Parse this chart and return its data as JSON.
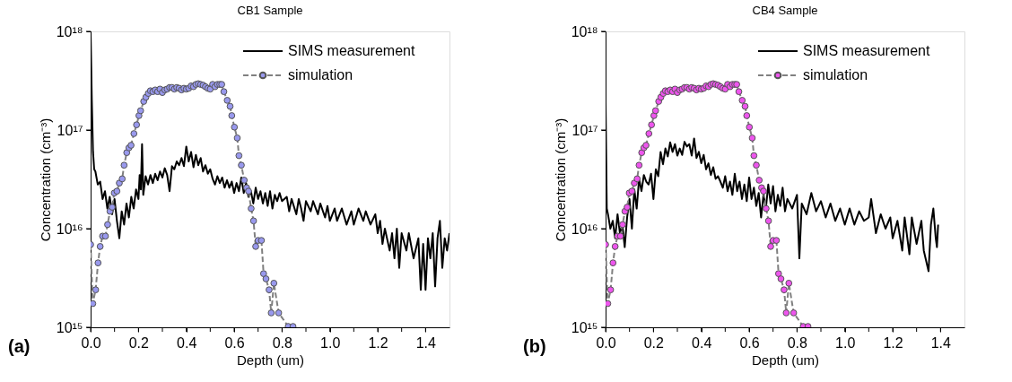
{
  "chart_data": [
    {
      "type": "line",
      "title": "CB1 Sample",
      "xlabel": "Depth (um)",
      "ylabel": "Concentration (cm⁻³)",
      "annotations": [
        "(a)"
      ],
      "log": "y",
      "grid": false,
      "legend": "top right",
      "xlim": [
        0,
        1.5
      ],
      "xticks": [
        {
          "value": 0,
          "label": "0.0"
        },
        {
          "value": 0.1,
          "label": null
        },
        {
          "value": 0.2,
          "label": "0.2"
        },
        {
          "value": 0.3,
          "label": null
        },
        {
          "value": 0.4,
          "label": "0.4"
        },
        {
          "value": 0.5,
          "label": null
        },
        {
          "value": 0.6,
          "label": "0.6"
        },
        {
          "value": 0.7,
          "label": null
        },
        {
          "value": 0.8,
          "label": "0.8"
        },
        {
          "value": 0.9,
          "label": null
        },
        {
          "value": 1.0,
          "label": "1.0"
        },
        {
          "value": 1.1,
          "label": null
        },
        {
          "value": 1.2,
          "label": "1.2"
        },
        {
          "value": 1.3,
          "label": null
        },
        {
          "value": 1.4,
          "label": "1.4"
        }
      ],
      "ylim": [
        1000000000000000.0,
        1e+18
      ],
      "yticks": [
        {
          "value": 1000000000000000.0,
          "label": "10¹⁵"
        },
        {
          "value": 1e+16,
          "label": "10¹⁶"
        },
        {
          "value": 1e+17,
          "label": "10¹⁷"
        },
        {
          "value": 1e+18,
          "label": "10¹⁸"
        }
      ],
      "series": [
        {
          "name": "SIMS measurement",
          "color": "#000000",
          "type": "line",
          "line_style": "solid",
          "marker": "none",
          "x": [
            0,
            0.005,
            0.01,
            0.015,
            0.02,
            0.03,
            0.04,
            0.05,
            0.06,
            0.07,
            0.08,
            0.09,
            0.1,
            0.11,
            0.12,
            0.13,
            0.14,
            0.15,
            0.16,
            0.17,
            0.18,
            0.19,
            0.2,
            0.205,
            0.21,
            0.215,
            0.22,
            0.23,
            0.24,
            0.25,
            0.26,
            0.27,
            0.28,
            0.29,
            0.3,
            0.31,
            0.32,
            0.33,
            0.34,
            0.35,
            0.36,
            0.37,
            0.38,
            0.39,
            0.4,
            0.41,
            0.42,
            0.43,
            0.44,
            0.45,
            0.46,
            0.47,
            0.48,
            0.49,
            0.5,
            0.51,
            0.52,
            0.53,
            0.54,
            0.55,
            0.56,
            0.57,
            0.58,
            0.59,
            0.6,
            0.61,
            0.62,
            0.63,
            0.64,
            0.65,
            0.66,
            0.67,
            0.68,
            0.69,
            0.7,
            0.71,
            0.72,
            0.73,
            0.74,
            0.75,
            0.76,
            0.77,
            0.78,
            0.79,
            0.8,
            0.82,
            0.83,
            0.84,
            0.86,
            0.87,
            0.88,
            0.89,
            0.9,
            0.92,
            0.93,
            0.95,
            0.96,
            0.98,
            0.99,
            1.0,
            1.02,
            1.03,
            1.05,
            1.07,
            1.09,
            1.1,
            1.12,
            1.14,
            1.15,
            1.17,
            1.19,
            1.2,
            1.21,
            1.22,
            1.23,
            1.25,
            1.26,
            1.27,
            1.28,
            1.29,
            1.3,
            1.32,
            1.33,
            1.35,
            1.37,
            1.38,
            1.39,
            1.4,
            1.41,
            1.42,
            1.43,
            1.44,
            1.45,
            1.46,
            1.47,
            1.48,
            1.49,
            1.5
          ],
          "values": [
            1e+18,
            2e+17,
            6e+16,
            4e+16,
            3.8e+16,
            2.8e+16,
            3e+16,
            2e+16,
            2.4e+16,
            1.6e+16,
            2.1e+16,
            1.4e+16,
            2e+16,
            1.2e+16,
            8000000000000000.0,
            1.5e+16,
            1.1e+16,
            1.8e+16,
            1.3e+16,
            2.1e+16,
            1.6e+16,
            2.5e+16,
            2e+16,
            3.5e+16,
            2.5e+16,
            7.2e+16,
            2.2e+16,
            3.4e+16,
            2.8e+16,
            3.5e+16,
            2.9e+16,
            3.6e+16,
            3.1e+16,
            3.8e+16,
            3.3e+16,
            4.1e+16,
            3.5e+16,
            2.4e+16,
            4.3e+16,
            4e+16,
            4.8e+16,
            4.4e+16,
            5.2e+16,
            4.3e+16,
            6.8e+16,
            4.8e+16,
            6e+16,
            4.2e+16,
            5.6e+16,
            4.4e+16,
            5.2e+16,
            3.8e+16,
            4.4e+16,
            3.6e+16,
            4e+16,
            3.2e+16,
            2.8e+16,
            3.4e+16,
            2.9e+16,
            3.3e+16,
            2.6e+16,
            3.1e+16,
            2.6e+16,
            3e+16,
            2.3e+16,
            2.9e+16,
            2.4e+16,
            3.3e+16,
            2.3e+16,
            2.9e+16,
            2.1e+16,
            2.4e+16,
            1.8e+16,
            2.6e+16,
            2e+16,
            2.4e+16,
            1.8e+16,
            2.3e+16,
            1.7e+16,
            2.4e+16,
            1.6e+16,
            2.2e+16,
            1.9e+16,
            2.3e+16,
            1.9e+16,
            2.1e+16,
            1.5e+16,
            2e+16,
            1.4e+16,
            2e+16,
            1.6e+16,
            1.2e+16,
            1.9e+16,
            1.5e+16,
            1.9e+16,
            1.4e+16,
            1.8e+16,
            1.3e+16,
            1.7e+16,
            1.2e+16,
            1.6e+16,
            1.2e+16,
            1.6e+16,
            1.1e+16,
            1.5e+16,
            1.1e+16,
            1.6e+16,
            1.2e+16,
            1.5e+16,
            1.1e+16,
            1.4e+16,
            9000000000000000.0,
            1.2e+16,
            7000000000000000.0,
            1e+16,
            6000000000000000.0,
            9000000000000000.0,
            5000000000000000.0,
            1e+16,
            4000000000000000.0,
            9000000000000000.0,
            6000000000000000.0,
            9000000000000000.0,
            5000000000000000.0,
            8000000000000000.0,
            2400000000000000.0,
            7000000000000000.0,
            2400000000000000.0,
            8000000000000000.0,
            5000000000000000.0,
            9000000000000000.0,
            2600000000000000.0,
            8000000000000000.0,
            1.2e+16,
            4000000000000000.0,
            8000000000000000.0,
            6000000000000000.0,
            9000000000000000.0
          ]
        },
        {
          "name": "simulation",
          "color": "#9999ee",
          "type": "line",
          "line_style": "dashed",
          "marker": "circle",
          "x": [
            0,
            0.009,
            0.021,
            0.031,
            0.04,
            0.05,
            0.062,
            0.071,
            0.081,
            0.09,
            0.099,
            0.11,
            0.12,
            0.132,
            0.14,
            0.151,
            0.16,
            0.169,
            0.181,
            0.192,
            0.202,
            0.209,
            0.222,
            0.231,
            0.241,
            0.25,
            0.26,
            0.27,
            0.28,
            0.29,
            0.3,
            0.31,
            0.32,
            0.33,
            0.34,
            0.35,
            0.36,
            0.37,
            0.38,
            0.39,
            0.4,
            0.41,
            0.42,
            0.43,
            0.44,
            0.45,
            0.46,
            0.47,
            0.48,
            0.49,
            0.5,
            0.51,
            0.52,
            0.53,
            0.54,
            0.548,
            0.557,
            0.571,
            0.583,
            0.59,
            0.601,
            0.613,
            0.62,
            0.63,
            0.642,
            0.652,
            0.66,
            0.671,
            0.681,
            0.69,
            0.7,
            0.714,
            0.723,
            0.733,
            0.746,
            0.755,
            0.766,
            0.786,
            0.826,
            0.846
          ],
          "values": [
            6900000000000000.0,
            1740000000000000.0,
            2400000000000000.0,
            4500000000000000.0,
            6600000000000000.0,
            8400000000000000.0,
            8400000000000000.0,
            1.1e+16,
            1.5e+16,
            1.65e+16,
            2.3e+16,
            2.4e+16,
            2.9e+16,
            3.2e+16,
            4.4e+16,
            5.9e+16,
            6.6e+16,
            7e+16,
            9.2e+16,
            1.13e+17,
            1.4e+17,
            1.57e+17,
            1.95e+17,
            2.15e+17,
            2.35e+17,
            2.5e+17,
            2.45e+17,
            2.55e+17,
            2.45e+17,
            2.6e+17,
            2.4e+17,
            2.55e+17,
            2.6e+17,
            2.7e+17,
            2.7e+17,
            2.6e+17,
            2.7e+17,
            2.65e+17,
            2.55e+17,
            2.65e+17,
            2.6e+17,
            2.65e+17,
            2.8e+17,
            2.75e+17,
            2.9e+17,
            2.95e+17,
            2.9e+17,
            2.85e+17,
            2.75e+17,
            2.65e+17,
            2.6e+17,
            2.9e+17,
            2.75e+17,
            2.9e+17,
            2.9e+17,
            2.9e+17,
            2.45e+17,
            2e+17,
            1.74e+17,
            1.4e+17,
            1.07e+17,
            8.3e+16,
            5.5e+16,
            4.4e+16,
            3.1e+16,
            2.6e+16,
            2.4e+16,
            1.6e+16,
            1.2e+16,
            6600000000000000.0,
            7600000000000000.0,
            7600000000000000.0,
            3500000000000000.0,
            3100000000000000.0,
            2400000000000000.0,
            1400000000000000.0,
            2800000000000000.0,
            1400000000000000.0,
            1020000000000000.0,
            1020000000000000.0
          ]
        }
      ]
    },
    {
      "type": "line",
      "title": "CB4 Sample",
      "xlabel": "Depth (um)",
      "ylabel": "Concentration (cm⁻³)",
      "annotations": [
        "(b)"
      ],
      "log": "y",
      "grid": false,
      "legend": "top right",
      "xlim": [
        0,
        1.5
      ],
      "xticks": [
        {
          "value": 0,
          "label": "0.0"
        },
        {
          "value": 0.1,
          "label": null
        },
        {
          "value": 0.2,
          "label": "0.2"
        },
        {
          "value": 0.3,
          "label": null
        },
        {
          "value": 0.4,
          "label": "0.4"
        },
        {
          "value": 0.5,
          "label": null
        },
        {
          "value": 0.6,
          "label": "0.6"
        },
        {
          "value": 0.7,
          "label": null
        },
        {
          "value": 0.8,
          "label": "0.8"
        },
        {
          "value": 0.9,
          "label": null
        },
        {
          "value": 1.0,
          "label": "1.0"
        },
        {
          "value": 1.1,
          "label": null
        },
        {
          "value": 1.2,
          "label": "1.2"
        },
        {
          "value": 1.3,
          "label": null
        },
        {
          "value": 1.4,
          "label": "1.4"
        }
      ],
      "ylim": [
        1000000000000000.0,
        1e+18
      ],
      "yticks": [
        {
          "value": 1000000000000000.0,
          "label": "10¹⁵"
        },
        {
          "value": 1e+16,
          "label": "10¹⁶"
        },
        {
          "value": 1e+17,
          "label": "10¹⁷"
        },
        {
          "value": 1e+18,
          "label": "10¹⁸"
        }
      ],
      "series": [
        {
          "name": "SIMS measurement",
          "color": "#000000",
          "type": "line",
          "line_style": "solid",
          "marker": "none",
          "x": [
            0,
            0.005,
            0.01,
            0.02,
            0.03,
            0.04,
            0.05,
            0.06,
            0.07,
            0.08,
            0.09,
            0.1,
            0.11,
            0.12,
            0.13,
            0.14,
            0.15,
            0.16,
            0.17,
            0.18,
            0.19,
            0.2,
            0.21,
            0.22,
            0.23,
            0.24,
            0.25,
            0.26,
            0.27,
            0.28,
            0.29,
            0.3,
            0.31,
            0.32,
            0.33,
            0.34,
            0.35,
            0.36,
            0.37,
            0.38,
            0.39,
            0.4,
            0.41,
            0.42,
            0.43,
            0.44,
            0.45,
            0.46,
            0.47,
            0.48,
            0.49,
            0.5,
            0.51,
            0.52,
            0.53,
            0.54,
            0.55,
            0.56,
            0.57,
            0.58,
            0.59,
            0.6,
            0.61,
            0.62,
            0.63,
            0.64,
            0.65,
            0.66,
            0.67,
            0.68,
            0.69,
            0.7,
            0.71,
            0.72,
            0.73,
            0.74,
            0.75,
            0.76,
            0.78,
            0.8,
            0.81,
            0.82,
            0.84,
            0.86,
            0.88,
            0.9,
            0.92,
            0.94,
            0.96,
            0.98,
            1.0,
            1.02,
            1.04,
            1.06,
            1.08,
            1.1,
            1.11,
            1.13,
            1.15,
            1.17,
            1.19,
            1.2,
            1.22,
            1.24,
            1.25,
            1.27,
            1.28,
            1.3,
            1.32,
            1.33,
            1.35,
            1.36,
            1.37,
            1.38,
            1.385,
            1.39
          ],
          "values": [
            1.9e+17,
            1.6e+16,
            1.4e+16,
            1e+16,
            1.2e+16,
            8000000000000000.0,
            1.4e+16,
            9000000000000000.0,
            1.1e+16,
            6500000000000000.0,
            1.3e+16,
            2e+16,
            1e+16,
            2.5e+16,
            1.6e+16,
            3.2e+16,
            2.4e+16,
            3.5e+16,
            3e+16,
            2.8e+16,
            3.6e+16,
            2e+16,
            4e+16,
            3.4e+16,
            6e+16,
            4.5e+16,
            6.5e+16,
            5.4e+16,
            7.5e+16,
            6e+16,
            7.2e+16,
            5.5e+16,
            6.5e+16,
            5.6e+16,
            7.6e+16,
            6.8e+16,
            7.2e+16,
            5.5e+16,
            8.2e+16,
            5.2e+16,
            6e+16,
            4.6e+16,
            5.6e+16,
            4e+16,
            4.6e+16,
            3.5e+16,
            4.2e+16,
            3.2e+16,
            3.4e+16,
            3e+16,
            2.6e+16,
            3.4e+16,
            2.4e+16,
            3e+16,
            2.2e+16,
            3.6e+16,
            2.4e+16,
            3e+16,
            2e+16,
            2.8e+16,
            1.9e+16,
            3.3e+16,
            2e+16,
            2.6e+16,
            1.7e+16,
            2.3e+16,
            1.3e+16,
            2.2e+16,
            1.6e+16,
            2.8e+16,
            1.8e+16,
            2.7e+16,
            1.5e+16,
            2.2e+16,
            1.7e+16,
            2.6e+16,
            1.5e+16,
            2e+16,
            1.6e+16,
            2.2e+16,
            5000000000000000.0,
            1.8e+16,
            1.4e+16,
            2.3e+16,
            1.5e+16,
            1.9e+16,
            1.3e+16,
            1.8e+16,
            1.2e+16,
            1.6e+16,
            1.1e+16,
            1.6e+16,
            1.1e+16,
            1.5e+16,
            1.2e+16,
            1.3e+16,
            2e+16,
            9000000000000000.0,
            1.4e+16,
            1e+16,
            1.3e+16,
            8000000000000000.0,
            1.2e+16,
            6000000000000000.0,
            1.3e+16,
            5500000000000000.0,
            1.3e+16,
            7000000000000000.0,
            1.2e+16,
            6000000000000000.0,
            3700000000000000.0,
            1.1e+16,
            1.6e+16,
            8000000000000000.0,
            6500000000000000.0,
            1.1e+16
          ]
        },
        {
          "name": "simulation",
          "color": "#ee55ee",
          "type": "line",
          "line_style": "dashed",
          "marker": "circle",
          "x": [
            0,
            0.009,
            0.021,
            0.031,
            0.04,
            0.05,
            0.062,
            0.071,
            0.081,
            0.09,
            0.099,
            0.11,
            0.12,
            0.132,
            0.14,
            0.151,
            0.16,
            0.169,
            0.181,
            0.192,
            0.202,
            0.209,
            0.222,
            0.231,
            0.241,
            0.25,
            0.26,
            0.27,
            0.28,
            0.29,
            0.3,
            0.31,
            0.32,
            0.33,
            0.34,
            0.35,
            0.36,
            0.37,
            0.38,
            0.39,
            0.4,
            0.41,
            0.42,
            0.43,
            0.44,
            0.45,
            0.46,
            0.47,
            0.48,
            0.49,
            0.5,
            0.51,
            0.52,
            0.53,
            0.54,
            0.548,
            0.557,
            0.571,
            0.583,
            0.59,
            0.601,
            0.613,
            0.62,
            0.63,
            0.642,
            0.652,
            0.66,
            0.671,
            0.681,
            0.69,
            0.7,
            0.714,
            0.723,
            0.733,
            0.746,
            0.755,
            0.766,
            0.786,
            0.826,
            0.846
          ],
          "values": [
            6900000000000000.0,
            1740000000000000.0,
            2400000000000000.0,
            4500000000000000.0,
            6600000000000000.0,
            8400000000000000.0,
            8400000000000000.0,
            1.1e+16,
            1.5e+16,
            1.65e+16,
            2.3e+16,
            2.4e+16,
            2.9e+16,
            3.2e+16,
            4.4e+16,
            5.9e+16,
            6.6e+16,
            7e+16,
            9.2e+16,
            1.13e+17,
            1.4e+17,
            1.57e+17,
            1.95e+17,
            2.15e+17,
            2.35e+17,
            2.5e+17,
            2.45e+17,
            2.55e+17,
            2.45e+17,
            2.6e+17,
            2.4e+17,
            2.55e+17,
            2.6e+17,
            2.7e+17,
            2.7e+17,
            2.6e+17,
            2.7e+17,
            2.65e+17,
            2.55e+17,
            2.65e+17,
            2.6e+17,
            2.65e+17,
            2.8e+17,
            2.75e+17,
            2.9e+17,
            2.95e+17,
            2.9e+17,
            2.85e+17,
            2.75e+17,
            2.65e+17,
            2.6e+17,
            2.9e+17,
            2.75e+17,
            2.9e+17,
            2.9e+17,
            2.9e+17,
            2.45e+17,
            2e+17,
            1.74e+17,
            1.4e+17,
            1.07e+17,
            8.3e+16,
            5.5e+16,
            4.4e+16,
            3.1e+16,
            2.6e+16,
            2.4e+16,
            1.6e+16,
            1.2e+16,
            6600000000000000.0,
            7600000000000000.0,
            7600000000000000.0,
            3500000000000000.0,
            3100000000000000.0,
            2400000000000000.0,
            1400000000000000.0,
            2800000000000000.0,
            1400000000000000.0,
            1020000000000000.0,
            1020000000000000.0
          ]
        }
      ]
    }
  ]
}
